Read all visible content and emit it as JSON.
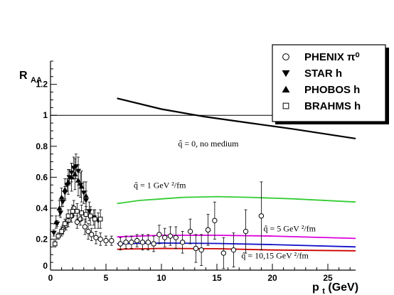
{
  "chart_data": {
    "type": "scatter",
    "xlabel": "p",
    "xlabel_sub": "t",
    "xlabel_unit": " (GeV)",
    "ylabel": "R",
    "ylabel_sub": "AA",
    "xlim": [
      0,
      27.5
    ],
    "ylim": [
      0,
      1.35
    ],
    "x_ticks": [
      0,
      5,
      10,
      15,
      20,
      25
    ],
    "y_ticks": [
      0.2,
      0.4,
      0.6,
      0.8,
      1,
      1.2
    ],
    "y_tick_labels": [
      "0.2",
      "0.4",
      "0.6",
      "0.8",
      "1",
      "1.2"
    ],
    "y_zero_label": "0",
    "reference_line": 1,
    "legend": {
      "placement": "top-right",
      "entries": [
        {
          "marker": "open-circle",
          "label": "PHENIX π⁰"
        },
        {
          "marker": "triangle-down",
          "label": "STAR h"
        },
        {
          "marker": "triangle-up",
          "label": "PHOBOS h"
        },
        {
          "marker": "open-square",
          "label": "BRAHMS h"
        }
      ]
    },
    "curves": [
      {
        "label": "q̂ = 0, no medium",
        "color": "#000000",
        "x": [
          6,
          10,
          14,
          18,
          22,
          27.5
        ],
        "y": [
          1.11,
          1.04,
          0.99,
          0.95,
          0.91,
          0.85
        ]
      },
      {
        "label": "q̂ = 1 GeV ²/fm",
        "color": "#33cc33",
        "x": [
          6,
          8,
          10,
          12,
          15,
          18,
          22,
          27.5
        ],
        "y": [
          0.43,
          0.45,
          0.46,
          0.47,
          0.475,
          0.47,
          0.46,
          0.44
        ]
      },
      {
        "label": "q̂ = 5 GeV ²/fm",
        "color": "#dd00dd",
        "x": [
          6,
          10,
          15,
          20,
          27.5
        ],
        "y": [
          0.215,
          0.225,
          0.225,
          0.22,
          0.205
        ]
      },
      {
        "label": "q̂ = 10,15 GeV ²/fm",
        "color": "#1010cc",
        "x": [
          6,
          10,
          15,
          20,
          27.5
        ],
        "y": [
          0.17,
          0.175,
          0.172,
          0.165,
          0.15
        ]
      },
      {
        "label": "",
        "color": "#cc0000",
        "x": [
          6,
          10,
          15,
          20,
          27.5
        ],
        "y": [
          0.135,
          0.14,
          0.138,
          0.13,
          0.125
        ]
      }
    ],
    "curve_labels": [
      {
        "text": "q̂ = 0, no medium",
        "x": 11.5,
        "y": 0.8
      },
      {
        "text": "q̂ = 1 GeV ²/fm",
        "x": 7.5,
        "y": 0.53
      },
      {
        "text": "q̂ = 5 GeV ²/fm",
        "x": 19.2,
        "y": 0.25
      },
      {
        "text": "q̂ = 10,15 GeV ²/fm",
        "x": 17.2,
        "y": 0.075
      }
    ],
    "series": [
      {
        "name": "PHENIX π⁰",
        "marker": "open-circle",
        "points": [
          [
            1.1,
            0.26,
            0.03
          ],
          [
            1.4,
            0.29,
            0.03
          ],
          [
            1.6,
            0.32,
            0.04
          ],
          [
            1.9,
            0.35,
            0.04
          ],
          [
            2.1,
            0.4,
            0.05
          ],
          [
            2.4,
            0.31,
            0.04
          ],
          [
            2.7,
            0.33,
            0.04
          ],
          [
            3.1,
            0.28,
            0.05
          ],
          [
            3.4,
            0.25,
            0.05
          ],
          [
            3.7,
            0.23,
            0.04
          ],
          [
            4.1,
            0.21,
            0.04
          ],
          [
            4.5,
            0.2,
            0.04
          ],
          [
            5.0,
            0.19,
            0.03
          ],
          [
            5.5,
            0.19,
            0.03
          ],
          [
            6.3,
            0.17,
            0.04
          ],
          [
            6.8,
            0.18,
            0.04
          ],
          [
            7.3,
            0.18,
            0.04
          ],
          [
            7.8,
            0.19,
            0.04
          ],
          [
            8.3,
            0.18,
            0.05
          ],
          [
            8.8,
            0.18,
            0.05
          ],
          [
            9.3,
            0.17,
            0.05
          ],
          [
            9.8,
            0.23,
            0.06
          ],
          [
            10.3,
            0.21,
            0.06
          ],
          [
            10.8,
            0.22,
            0.06
          ],
          [
            11.3,
            0.21,
            0.07
          ],
          [
            11.9,
            0.18,
            0.07
          ],
          [
            12.6,
            0.25,
            0.08
          ],
          [
            13.1,
            0.14,
            0.09
          ],
          [
            13.6,
            0.13,
            0.1
          ],
          [
            14.2,
            0.26,
            0.1
          ],
          [
            14.8,
            0.32,
            0.12
          ],
          [
            15.6,
            0.11,
            0.1
          ],
          [
            16.5,
            0.13,
            0.11
          ],
          [
            17.6,
            0.25,
            0.14
          ],
          [
            19.0,
            0.35,
            0.22
          ]
        ]
      },
      {
        "name": "STAR h",
        "marker": "triangle-down",
        "points": [
          [
            0.3,
            0.24,
            0.02
          ],
          [
            0.6,
            0.3,
            0.02
          ],
          [
            0.9,
            0.37,
            0.03
          ],
          [
            1.1,
            0.44,
            0.03
          ],
          [
            1.3,
            0.5,
            0.04
          ],
          [
            1.5,
            0.55,
            0.04
          ],
          [
            1.7,
            0.6,
            0.05
          ],
          [
            1.9,
            0.63,
            0.06
          ],
          [
            2.1,
            0.66,
            0.07
          ],
          [
            2.3,
            0.67,
            0.08
          ],
          [
            2.5,
            0.64,
            0.09
          ],
          [
            2.7,
            0.55,
            0.08
          ],
          [
            3.0,
            0.5,
            0.07
          ],
          [
            3.2,
            0.45,
            0.06
          ],
          [
            3.5,
            0.38,
            0.06
          ],
          [
            3.9,
            0.34,
            0.05
          ],
          [
            4.3,
            0.32,
            0.05
          ]
        ]
      },
      {
        "name": "PHOBOS h",
        "marker": "triangle-up",
        "points": [
          [
            0.5,
            0.31,
            0.04
          ],
          [
            0.8,
            0.4,
            0.05
          ],
          [
            1.0,
            0.47,
            0.06
          ],
          [
            1.3,
            0.52,
            0.07
          ],
          [
            1.6,
            0.57,
            0.08
          ],
          [
            1.9,
            0.6,
            0.09
          ],
          [
            2.2,
            0.62,
            0.1
          ],
          [
            2.5,
            0.58,
            0.1
          ],
          [
            2.8,
            0.54,
            0.1
          ],
          [
            3.2,
            0.48,
            0.09
          ]
        ]
      },
      {
        "name": "BRAHMS h",
        "marker": "open-square",
        "points": [
          [
            0.4,
            0.17,
            0.02
          ],
          [
            0.7,
            0.22,
            0.02
          ],
          [
            1.0,
            0.25,
            0.03
          ],
          [
            1.3,
            0.3,
            0.03
          ],
          [
            1.6,
            0.35,
            0.04
          ],
          [
            2.0,
            0.38,
            0.04
          ],
          [
            2.4,
            0.38,
            0.05
          ],
          [
            2.8,
            0.37,
            0.05
          ],
          [
            3.2,
            0.36,
            0.05
          ],
          [
            3.6,
            0.35,
            0.06
          ],
          [
            4.0,
            0.33,
            0.06
          ],
          [
            4.5,
            0.33,
            0.06
          ]
        ]
      }
    ]
  }
}
